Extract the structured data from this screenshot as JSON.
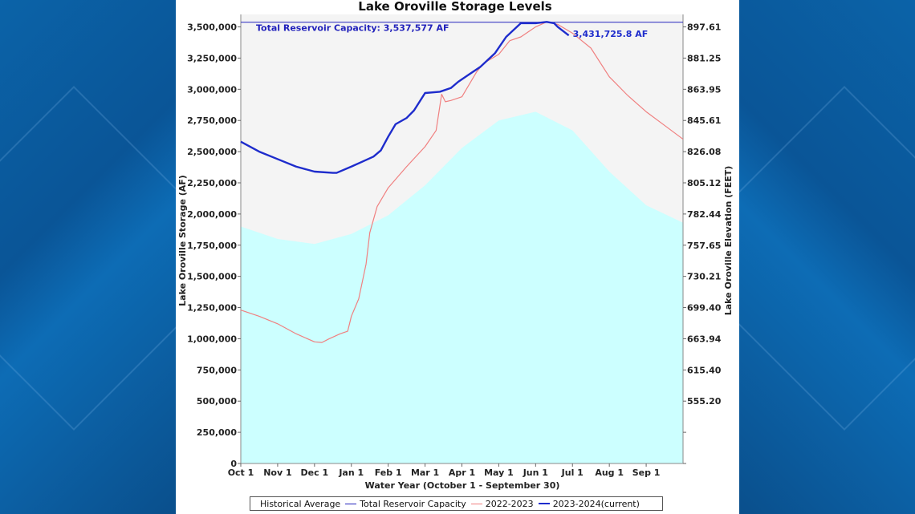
{
  "chart_data": {
    "type": "area",
    "title": "Lake Oroville Storage Levels",
    "xlabel": "Water Year (October 1 - September 30)",
    "ylabel": "Lake Oroville Storage (AF)",
    "y2label": "Lake Oroville Elevation (FEET)",
    "ylim": [
      0,
      3600000
    ],
    "xlim": [
      0,
      12
    ],
    "x_ticks": [
      "Oct 1",
      "Nov 1",
      "Dec 1",
      "Jan 1",
      "Feb 1",
      "Mar 1",
      "Apr 1",
      "May 1",
      "Jun 1",
      "Jul 1",
      "Aug 1",
      "Sep 1"
    ],
    "y_ticks": [
      0,
      250000,
      500000,
      750000,
      1000000,
      1250000,
      1500000,
      1750000,
      2000000,
      2250000,
      2500000,
      2750000,
      3000000,
      3250000,
      3500000
    ],
    "y_tick_labels": [
      "0",
      "250,000",
      "500,000",
      "750,000",
      "1,000,000",
      "1,250,000",
      "1,500,000",
      "1,750,000",
      "2,000,000",
      "2,250,000",
      "2,500,000",
      "2,750,000",
      "3,000,000",
      "3,250,000",
      "3,500,000"
    ],
    "y2_ticks": [
      {
        "storage": 500000,
        "label": "555.20"
      },
      {
        "storage": 750000,
        "label": "615.40"
      },
      {
        "storage": 1000000,
        "label": "663.94"
      },
      {
        "storage": 1250000,
        "label": "699.40"
      },
      {
        "storage": 1500000,
        "label": "730.21"
      },
      {
        "storage": 1750000,
        "label": "757.65"
      },
      {
        "storage": 2000000,
        "label": "782.44"
      },
      {
        "storage": 2250000,
        "label": "805.12"
      },
      {
        "storage": 2500000,
        "label": "826.08"
      },
      {
        "storage": 2750000,
        "label": "845.61"
      },
      {
        "storage": 3000000,
        "label": "863.95"
      },
      {
        "storage": 3250000,
        "label": "881.25"
      },
      {
        "storage": 3500000,
        "label": "897.61"
      }
    ],
    "capacity": {
      "value": 3537577,
      "label": "Total Reservoir Capacity: 3,537,577 AF"
    },
    "current_label": "3,431,725.8 AF",
    "current_value": 3431725.8,
    "series": [
      {
        "name": "Historical Average",
        "color": "#ccffff",
        "x": [
          0,
          1,
          2,
          3,
          4,
          5,
          6,
          7,
          8,
          9,
          10,
          11,
          12
        ],
        "values": [
          1900000,
          1800000,
          1760000,
          1840000,
          1990000,
          2230000,
          2530000,
          2750000,
          2820000,
          2670000,
          2340000,
          2070000,
          1930000
        ]
      },
      {
        "name": "Total Reservoir Capacity",
        "color": "#2222bb",
        "x": [
          0,
          12
        ],
        "values": [
          3537577,
          3537577
        ]
      },
      {
        "name": "2022-2023",
        "color": "#f08080",
        "x": [
          0,
          0.5,
          1,
          1.5,
          2,
          2.2,
          2.4,
          2.7,
          2.9,
          3.0,
          3.2,
          3.4,
          3.5,
          3.7,
          4.0,
          4.5,
          5.0,
          5.3,
          5.45,
          5.55,
          5.7,
          6.0,
          6.4,
          6.6,
          7.0,
          7.3,
          7.6,
          8.0,
          8.3,
          8.6,
          9.0,
          9.5,
          10.0,
          10.5,
          11.0,
          11.5,
          12.0
        ],
        "values": [
          1230000,
          1180000,
          1120000,
          1040000,
          975000,
          970000,
          1000000,
          1040000,
          1060000,
          1180000,
          1320000,
          1600000,
          1850000,
          2060000,
          2210000,
          2380000,
          2540000,
          2670000,
          2960000,
          2900000,
          2910000,
          2940000,
          3140000,
          3210000,
          3280000,
          3390000,
          3420000,
          3500000,
          3540000,
          3520000,
          3450000,
          3330000,
          3100000,
          2950000,
          2820000,
          2710000,
          2600000
        ]
      },
      {
        "name": "2023-2024(current)",
        "color": "#1e2ccc",
        "x": [
          0,
          0.5,
          1,
          1.5,
          2,
          2.5,
          2.6,
          3.0,
          3.3,
          3.6,
          3.8,
          4.0,
          4.2,
          4.5,
          4.7,
          5.0,
          5.4,
          5.7,
          5.9,
          6.2,
          6.5,
          6.9,
          7.2,
          7.6,
          8.0,
          8.3,
          8.5,
          8.6,
          8.9
        ],
        "values": [
          2580000,
          2500000,
          2440000,
          2380000,
          2340000,
          2330000,
          2330000,
          2380000,
          2420000,
          2460000,
          2510000,
          2620000,
          2720000,
          2770000,
          2830000,
          2970000,
          2980000,
          3010000,
          3060000,
          3120000,
          3180000,
          3290000,
          3420000,
          3530000,
          3530000,
          3540000,
          3530000,
          3500000,
          3431725.8
        ]
      }
    ],
    "legend": {
      "placement": "bottom"
    }
  }
}
